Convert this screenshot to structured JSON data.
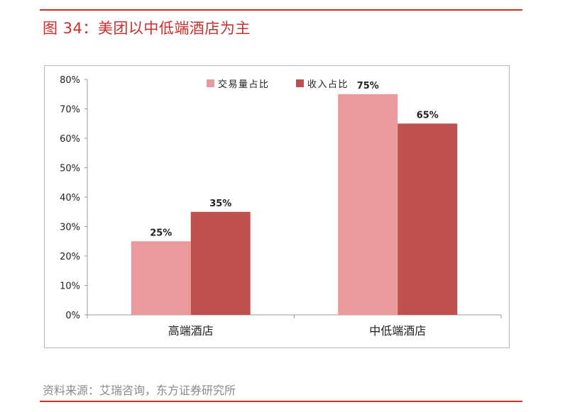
{
  "figure": {
    "title": "图 34：美团以中低端酒店为主",
    "source": "资料来源：艾瑞咨询，东方证券研究所"
  },
  "colors": {
    "accent": "#c9302c",
    "series_volume": "#e89a9c",
    "series_revenue": "#c0504d"
  },
  "chart_data": {
    "type": "bar",
    "categories": [
      "高端酒店",
      "中低端酒店"
    ],
    "series": [
      {
        "name": "交易量占比",
        "values": [
          25,
          75
        ],
        "labels": [
          "25%",
          "75%"
        ]
      },
      {
        "name": "收入占比",
        "values": [
          35,
          65
        ],
        "labels": [
          "35%",
          "65%"
        ]
      }
    ],
    "y_ticks": [
      "0%",
      "10%",
      "20%",
      "30%",
      "40%",
      "50%",
      "60%",
      "70%",
      "80%"
    ],
    "ylim": [
      0,
      80
    ],
    "grid": false,
    "legend_position": "top-center"
  }
}
